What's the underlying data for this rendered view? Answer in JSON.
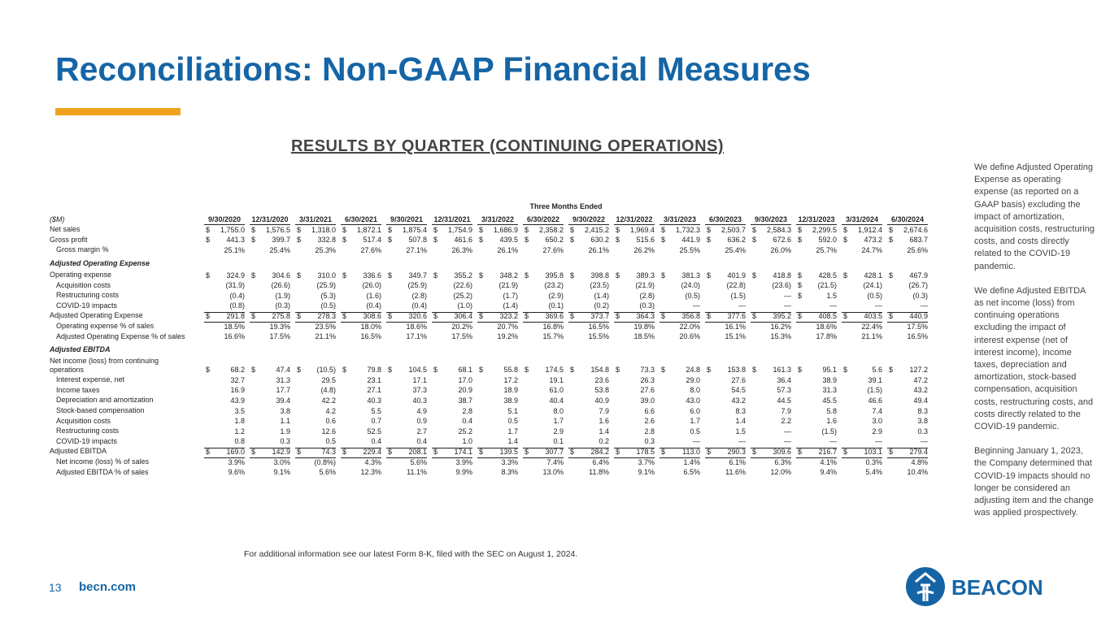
{
  "header": {
    "title": "Reconciliations: Non-GAAP Financial Measures",
    "subtitle": "RESULTS BY QUARTER (CONTINUING OPERATIONS)"
  },
  "table": {
    "group": "Three Months Ended",
    "unit": "($M)",
    "columns": [
      "9/30/2020",
      "12/31/2020",
      "3/31/2021",
      "6/30/2021",
      "9/30/2021",
      "12/31/2021",
      "3/31/2022",
      "6/30/2022",
      "9/30/2022",
      "12/31/2022",
      "3/31/2023",
      "6/30/2023",
      "9/30/2023",
      "12/31/2023",
      "3/31/2024",
      "6/30/2024"
    ],
    "rows": [
      {
        "label": "Net sales",
        "style": "plain",
        "cells": [
          [
            "$",
            "1,755.0"
          ],
          [
            "$",
            "1,576.5"
          ],
          [
            "$",
            "1,318.0"
          ],
          [
            "$",
            "1,872.1"
          ],
          [
            "$",
            "1,875.4"
          ],
          [
            "$",
            "1,754.9"
          ],
          [
            "$",
            "1,686.9"
          ],
          [
            "$",
            "2,358.2"
          ],
          [
            "$",
            "2,415.2"
          ],
          [
            "$",
            "1,969.4"
          ],
          [
            "$",
            "1,732.3"
          ],
          [
            "$",
            "2,503.7"
          ],
          [
            "$",
            "2,584.3"
          ],
          [
            "$",
            "2,299.5"
          ],
          [
            "$",
            "1,912.4"
          ],
          [
            "$",
            "2,674.6"
          ]
        ]
      },
      {
        "label": "Gross profit",
        "style": "plain",
        "cells": [
          [
            "$",
            "441.3"
          ],
          [
            "$",
            "399.7"
          ],
          [
            "$",
            "332.8"
          ],
          [
            "$",
            "517.4"
          ],
          [
            "$",
            "507.8"
          ],
          [
            "$",
            "461.6"
          ],
          [
            "$",
            "439.5"
          ],
          [
            "$",
            "650.2"
          ],
          [
            "$",
            "630.2"
          ],
          [
            "$",
            "515.6"
          ],
          [
            "$",
            "441.9"
          ],
          [
            "$",
            "636.2"
          ],
          [
            "$",
            "672.6"
          ],
          [
            "$",
            "592.0"
          ],
          [
            "$",
            "473.2"
          ],
          [
            "$",
            "683.7"
          ]
        ]
      },
      {
        "label": "Gross margin %",
        "style": "indent",
        "cells": [
          "25.1%",
          "25.4%",
          "25.3%",
          "27.6%",
          "27.1%",
          "26.3%",
          "26.1%",
          "27.6%",
          "26.1%",
          "26.2%",
          "25.5%",
          "25.4%",
          "26.0%",
          "25.7%",
          "24.7%",
          "25.6%"
        ]
      },
      {
        "label": "Adjusted Operating Expense",
        "style": "section",
        "cells": []
      },
      {
        "label": "Operating expense",
        "style": "plain",
        "cells": [
          [
            "$",
            "324.9"
          ],
          [
            "$",
            "304.6"
          ],
          [
            "$",
            "310.0"
          ],
          [
            "$",
            "336.6"
          ],
          [
            "$",
            "349.7"
          ],
          [
            "$",
            "355.2"
          ],
          [
            "$",
            "348.2"
          ],
          [
            "$",
            "395.8"
          ],
          [
            "$",
            "398.8"
          ],
          [
            "$",
            "389.3"
          ],
          [
            "$",
            "381.3"
          ],
          [
            "$",
            "401.9"
          ],
          [
            "$",
            "418.8"
          ],
          [
            "$",
            "428.5"
          ],
          [
            "$",
            "428.1"
          ],
          [
            "$",
            "467.9"
          ]
        ]
      },
      {
        "label": "Acquisition costs",
        "style": "indent",
        "cells": [
          "(31.9)",
          "(26.6)",
          "(25.9)",
          "(26.0)",
          "(25.9)",
          "(22.6)",
          "(21.9)",
          "(23.2)",
          "(23.5)",
          "(21.9)",
          "(24.0)",
          "(22.8)",
          "(23.6)",
          [
            "$",
            "(21.5)"
          ],
          "(24.1)",
          "(26.7)"
        ]
      },
      {
        "label": "Restructuring costs",
        "style": "indent",
        "cells": [
          "(0.4)",
          "(1.9)",
          "(5.3)",
          "(1.6)",
          "(2.8)",
          "(25.2)",
          "(1.7)",
          "(2.9)",
          "(1.4)",
          "(2.8)",
          "(0.5)",
          "(1.5)",
          "—",
          [
            "$",
            "1.5"
          ],
          "(0.5)",
          "(0.3)"
        ]
      },
      {
        "label": "COVID-19 impacts",
        "style": "indent",
        "cells": [
          "(0.8)",
          "(0.3)",
          "(0.5)",
          "(0.4)",
          "(0.4)",
          "(1.0)",
          "(1.4)",
          "(0.1)",
          "(0.2)",
          "(0.3)",
          "—",
          "—",
          "—",
          "—",
          "—",
          "—"
        ]
      },
      {
        "label": "Adjusted Operating Expense",
        "style": "total",
        "cells": [
          [
            "$",
            "291.8"
          ],
          [
            "$",
            "275.8"
          ],
          [
            "$",
            "278.3"
          ],
          [
            "$",
            "308.6"
          ],
          [
            "$",
            "320.6"
          ],
          [
            "$",
            "306.4"
          ],
          [
            "$",
            "323.2"
          ],
          [
            "$",
            "369.6"
          ],
          [
            "$",
            "373.7"
          ],
          [
            "$",
            "364.3"
          ],
          [
            "$",
            "356.8"
          ],
          [
            "$",
            "377.6"
          ],
          [
            "$",
            "395.2"
          ],
          [
            "$",
            "408.5"
          ],
          [
            "$",
            "403.5"
          ],
          [
            "$",
            "440.9"
          ]
        ]
      },
      {
        "label": "Operating expense % of sales",
        "style": "indent",
        "cells": [
          "18.5%",
          "19.3%",
          "23.5%",
          "18.0%",
          "18.6%",
          "20.2%",
          "20.7%",
          "16.8%",
          "16.5%",
          "19.8%",
          "22.0%",
          "16.1%",
          "16.2%",
          "18.6%",
          "22.4%",
          "17.5%"
        ]
      },
      {
        "label": "Adjusted Operating Expense % of sales",
        "style": "indent",
        "cells": [
          "16.6%",
          "17.5%",
          "21.1%",
          "16.5%",
          "17.1%",
          "17.5%",
          "19.2%",
          "15.7%",
          "15.5%",
          "18.5%",
          "20.6%",
          "15.1%",
          "15.3%",
          "17.8%",
          "21.1%",
          "16.5%"
        ]
      },
      {
        "label": "Adjusted EBITDA",
        "style": "section",
        "cells": []
      },
      {
        "label": "Net income (loss) from continuing operations",
        "style": "wrap",
        "cells": [
          [
            "$",
            "68.2"
          ],
          [
            "$",
            "47.4"
          ],
          [
            "$",
            "(10.5)"
          ],
          [
            "$",
            "79.8"
          ],
          [
            "$",
            "104.5"
          ],
          [
            "$",
            "68.1"
          ],
          [
            "$",
            "55.8"
          ],
          [
            "$",
            "174.5"
          ],
          [
            "$",
            "154.8"
          ],
          [
            "$",
            "73.3"
          ],
          [
            "$",
            "24.8"
          ],
          [
            "$",
            "153.8"
          ],
          [
            "$",
            "161.3"
          ],
          [
            "$",
            "95.1"
          ],
          [
            "$",
            "5.6"
          ],
          [
            "$",
            "127.2"
          ]
        ]
      },
      {
        "label": "Interest expense, net",
        "style": "indent",
        "cells": [
          "32.7",
          "31.3",
          "29.5",
          "23.1",
          "17.1",
          "17.0",
          "17.2",
          "19.1",
          "23.6",
          "26.3",
          "29.0",
          "27.6",
          "36.4",
          "38.9",
          "39.1",
          "47.2"
        ]
      },
      {
        "label": "Income taxes",
        "style": "indent",
        "cells": [
          "16.9",
          "17.7",
          "(4.8)",
          "27.1",
          "37.3",
          "20.9",
          "18.9",
          "61.0",
          "53.8",
          "27.6",
          "8.0",
          "54.5",
          "57.3",
          "31.3",
          "(1.5)",
          "43.2"
        ]
      },
      {
        "label": "Depreciation and amortization",
        "style": "indent",
        "cells": [
          "43.9",
          "39.4",
          "42.2",
          "40.3",
          "40.3",
          "38.7",
          "38.9",
          "40.4",
          "40.9",
          "39.0",
          "43.0",
          "43.2",
          "44.5",
          "45.5",
          "46.6",
          "49.4"
        ]
      },
      {
        "label": "Stock-based compensation",
        "style": "indent",
        "cells": [
          "3.5",
          "3.8",
          "4.2",
          "5.5",
          "4.9",
          "2.8",
          "5.1",
          "8.0",
          "7.9",
          "6.6",
          "6.0",
          "8.3",
          "7.9",
          "5.8",
          "7.4",
          "8.3"
        ]
      },
      {
        "label": "Acquisition costs",
        "style": "indent",
        "cells": [
          "1.8",
          "1.1",
          "0.6",
          "0.7",
          "0.9",
          "0.4",
          "0.5",
          "1.7",
          "1.6",
          "2.6",
          "1.7",
          "1.4",
          "2.2",
          "1.6",
          "3.0",
          "3.8"
        ]
      },
      {
        "label": "Restructuring costs",
        "style": "indent",
        "cells": [
          "1.2",
          "1.9",
          "12.6",
          "52.5",
          "2.7",
          "25.2",
          "1.7",
          "2.9",
          "1.4",
          "2.8",
          "0.5",
          "1.5",
          "—",
          "(1.5)",
          "2.9",
          "0.3"
        ]
      },
      {
        "label": "COVID-19 impacts",
        "style": "indent",
        "cells": [
          "0.8",
          "0.3",
          "0.5",
          "0.4",
          "0.4",
          "1.0",
          "1.4",
          "0.1",
          "0.2",
          "0.3",
          "—",
          "—",
          "—",
          "—",
          "—",
          "—"
        ]
      },
      {
        "label": "Adjusted EBITDA",
        "style": "total",
        "cells": [
          [
            "$",
            "169.0"
          ],
          [
            "$",
            "142.9"
          ],
          [
            "$",
            "74.3"
          ],
          [
            "$",
            "229.4"
          ],
          [
            "$",
            "208.1"
          ],
          [
            "$",
            "174.1"
          ],
          [
            "$",
            "139.5"
          ],
          [
            "$",
            "307.7"
          ],
          [
            "$",
            "284.2"
          ],
          [
            "$",
            "178.5"
          ],
          [
            "$",
            "113.0"
          ],
          [
            "$",
            "290.3"
          ],
          [
            "$",
            "309.6"
          ],
          [
            "$",
            "216.7"
          ],
          [
            "$",
            "103.1"
          ],
          [
            "$",
            "279.4"
          ]
        ]
      },
      {
        "label": "Net income (loss) % of sales",
        "style": "indent",
        "cells": [
          "3.9%",
          "3.0%",
          "(0.8%)",
          "4.3%",
          "5.6%",
          "3.9%",
          "3.3%",
          "7.4%",
          "6.4%",
          "3.7%",
          "1.4%",
          "6.1%",
          "6.3%",
          "4.1%",
          "0.3%",
          "4.8%"
        ]
      },
      {
        "label": "Adjusted EBITDA % of sales",
        "style": "indent",
        "cells": [
          "9.6%",
          "9.1%",
          "5.6%",
          "12.3%",
          "11.1%",
          "9.9%",
          "8.3%",
          "13.0%",
          "11.8%",
          "9.1%",
          "6.5%",
          "11.6%",
          "12.0%",
          "9.4%",
          "5.4%",
          "10.4%"
        ]
      }
    ]
  },
  "sidebar": [
    "We define Adjusted Operating Expense as operating expense (as reported on a GAAP basis) excluding the impact of amortization, acquisition costs, restructuring costs, and costs directly related to the COVID-19 pandemic.",
    "We define Adjusted EBITDA as net income (loss) from continuing operations excluding the impact of interest expense (net of interest income), income taxes, depreciation and amortization, stock-based compensation, acquisition costs, restructuring costs, and costs directly related to the COVID-19 pandemic.",
    "Beginning January 1, 2023, the Company determined that COVID-19 impacts should no longer be considered an adjusting item and the change was applied prospectively."
  ],
  "footnote": "For additional information see our latest Form 8-K, filed with the SEC on August 1, 2024.",
  "footer": {
    "page": "13",
    "site": "becn.com",
    "logo": "BEACON"
  }
}
